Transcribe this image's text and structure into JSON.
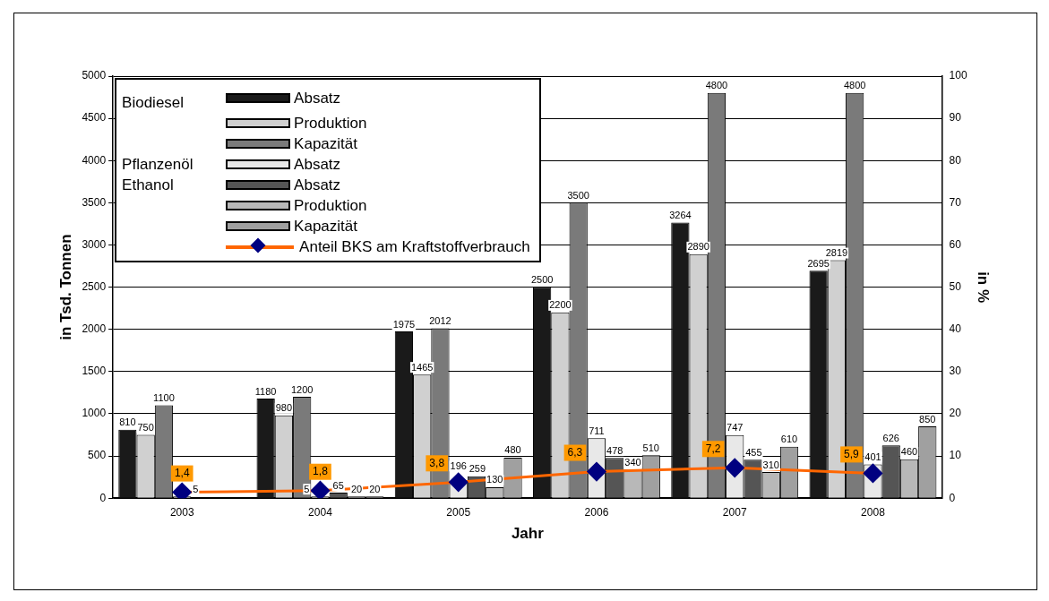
{
  "chart_data": {
    "type": "bar",
    "categories": [
      "2003",
      "2004",
      "2005",
      "2006",
      "2007",
      "2008"
    ],
    "xlabel": "Jahr",
    "ylabel": "in Tsd. Tonnen",
    "y2label": "in %",
    "ylim": [
      0,
      5000
    ],
    "yticks": [
      0,
      500,
      1000,
      1500,
      2000,
      2500,
      3000,
      3500,
      4000,
      4500,
      5000
    ],
    "y2lim": [
      0,
      100
    ],
    "y2ticks": [
      0,
      10,
      20,
      30,
      40,
      50,
      60,
      70,
      80,
      90,
      100
    ],
    "grid": "y",
    "legend": "top left",
    "data_labels": true,
    "annotations": [
      "Biodiesel",
      "Pflanzenöl",
      "Ethanol"
    ],
    "series": [
      {
        "name": "Absatz",
        "color": "#1a1a1a",
        "values": [
          810,
          1180,
          1975,
          2500,
          3264,
          2695
        ]
      },
      {
        "name": "Produktion",
        "color": "#d0d0d0",
        "values": [
          750,
          980,
          1465,
          2200,
          2890,
          2819
        ]
      },
      {
        "name": "Kapazität",
        "color": "#7a7a7a",
        "values": [
          1100,
          1200,
          2012,
          3500,
          4800,
          4800
        ]
      },
      {
        "name": "Absatz",
        "color": "#e8e8e8",
        "values": [
          5,
          5,
          196,
          711,
          747,
          401
        ]
      },
      {
        "name": "Absatz",
        "color": "#555555",
        "values": [
          null,
          65,
          259,
          478,
          455,
          626
        ]
      },
      {
        "name": "Produktion",
        "color": "#b8b8b8",
        "values": [
          null,
          20,
          130,
          340,
          310,
          460
        ]
      },
      {
        "name": "Kapazität",
        "color": "#a0a0a0",
        "values": [
          null,
          20,
          480,
          510,
          610,
          850
        ]
      },
      {
        "name": "Anteil BKS am Kraftstoffverbrauch",
        "type": "line",
        "axis": "y2",
        "color": "#ff6600",
        "marker": "diamond",
        "values": [
          1.4,
          1.8,
          3.8,
          6.3,
          7.2,
          5.9
        ],
        "value_labels": [
          "1,4",
          "1,8",
          "3,8",
          "6,3",
          "7,2",
          "5,9"
        ]
      }
    ]
  }
}
